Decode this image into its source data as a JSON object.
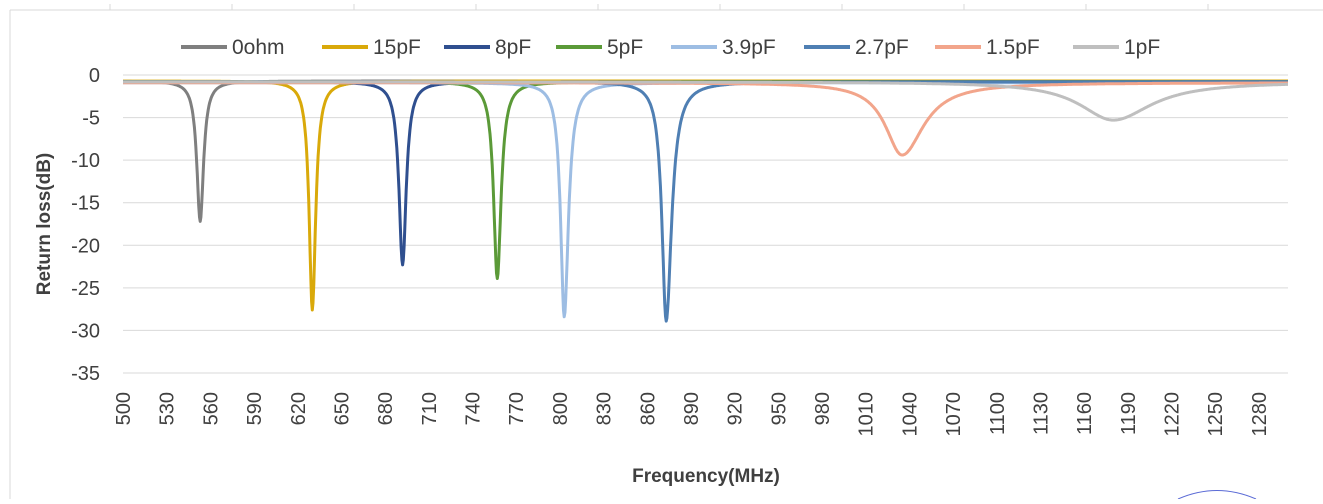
{
  "chart_data": {
    "type": "line",
    "title": "",
    "xlabel": "Frequency(MHz)",
    "ylabel": "Return loss(dB)",
    "xlim": [
      500,
      1300
    ],
    "ylim": [
      -35,
      0
    ],
    "x_ticks": [
      "500",
      "530",
      "560",
      "590",
      "620",
      "650",
      "680",
      "710",
      "740",
      "770",
      "800",
      "830",
      "860",
      "890",
      "920",
      "950",
      "980",
      "1010",
      "1040",
      "1070",
      "1100",
      "1130",
      "1160",
      "1190",
      "1220",
      "1250",
      "1280"
    ],
    "y_ticks": [
      "0",
      "-5",
      "-10",
      "-15",
      "-20",
      "-25",
      "-30",
      "-35"
    ],
    "grid": "horizontal",
    "legend_position": "top",
    "series": [
      {
        "name": "0ohm",
        "color": "#7f7f7f",
        "min_x": 553,
        "min_y": -17.2,
        "baseline": -0.7,
        "left_width": 2.8,
        "right_width": 2.8
      },
      {
        "name": "15pF",
        "color": "#d9a90a",
        "min_x": 630,
        "min_y": -27.6,
        "baseline": -0.7,
        "left_width": 2.6,
        "right_width": 2.8
      },
      {
        "name": "8pF",
        "color": "#2f4f8f",
        "min_x": 692,
        "min_y": -22.3,
        "baseline": -0.8,
        "left_width": 3.0,
        "right_width": 3.0
      },
      {
        "name": "5pF",
        "color": "#5b9a38",
        "min_x": 757,
        "min_y": -23.9,
        "baseline": -0.8,
        "left_width": 3.0,
        "right_width": 3.2
      },
      {
        "name": "3.9pF",
        "color": "#9dbde3",
        "min_x": 803,
        "min_y": -28.4,
        "baseline": -0.9,
        "left_width": 3.0,
        "right_width": 3.5
      },
      {
        "name": "2.7pF",
        "color": "#4f7fb3",
        "min_x": 873,
        "min_y": -28.9,
        "baseline": -0.8,
        "left_width": 3.5,
        "right_width": 4.5
      },
      {
        "name": "1.5pF",
        "color": "#f2a58b",
        "min_x": 1035,
        "min_y": -9.4,
        "baseline": -0.9,
        "left_width": 14.0,
        "right_width": 18.0
      },
      {
        "name": "1pF",
        "color": "#bfbfbf",
        "min_x": 1180,
        "min_y": -5.3,
        "baseline": -0.8,
        "left_width": 28.0,
        "right_width": 32.0
      }
    ]
  }
}
